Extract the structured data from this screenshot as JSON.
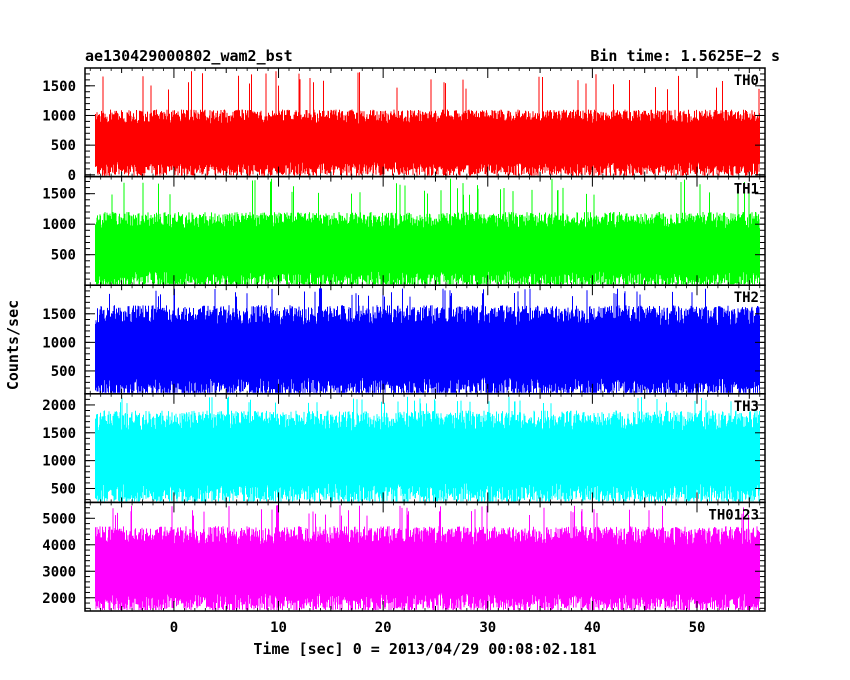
{
  "chart_data": {
    "type": "line",
    "title": "ae130429000802_wam2_bst",
    "bin_time_label": "Bin time: 1.5625E−2 s",
    "xlabel": "Time [sec] 0 = 2013/04/29 00:08:02.181",
    "ylabel": "Counts/sec",
    "xlim": [
      -8.5,
      56.5
    ],
    "x_data_range": [
      -7.5,
      56.0
    ],
    "xticks": [
      0,
      10,
      20,
      30,
      40,
      50
    ],
    "panels": [
      {
        "name": "TH0",
        "color": "#ff0000",
        "ylim": [
          -30,
          1800
        ],
        "yticks": [
          0,
          500,
          1000,
          1500
        ],
        "low": 120,
        "high": 1100,
        "peak": 1750
      },
      {
        "name": "TH1",
        "color": "#00ff00",
        "ylim": [
          0,
          1780
        ],
        "yticks": [
          500,
          1000,
          1500
        ],
        "low": 120,
        "high": 1200,
        "peak": 1750
      },
      {
        "name": "TH2",
        "color": "#0000ff",
        "ylim": [
          100,
          2000
        ],
        "yticks": [
          500,
          1000,
          1500
        ],
        "low": 250,
        "high": 1650,
        "peak": 1950
      },
      {
        "name": "TH3",
        "color": "#00ffff",
        "ylim": [
          250,
          2200
        ],
        "yticks": [
          500,
          1000,
          1500,
          2000
        ],
        "low": 450,
        "high": 1900,
        "peak": 2150
      },
      {
        "name": "TH0123",
        "color": "#ff00ff",
        "ylim": [
          1500,
          5600
        ],
        "yticks": [
          2000,
          3000,
          4000,
          5000
        ],
        "low": 1900,
        "high": 4700,
        "peak": 5500
      }
    ]
  }
}
